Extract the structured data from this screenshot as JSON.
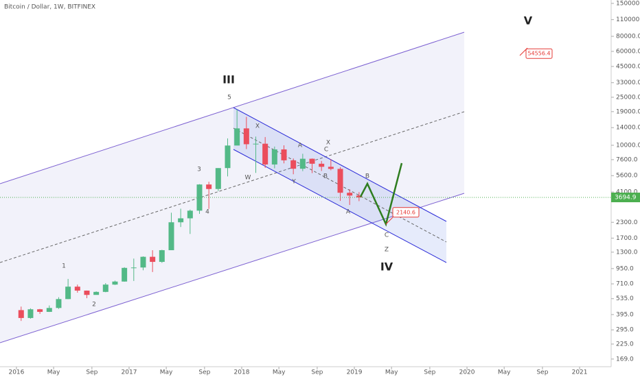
{
  "chart_data": {
    "type": "candlestick",
    "title": "Bitcoin / Dollar, 1W, BITFINEX",
    "log_scale": true,
    "up_color": "#53b987",
    "down_color": "#eb4d5c",
    "x": [
      "2016-01",
      "2016-02",
      "2016-03",
      "2016-04",
      "2016-05",
      "2016-06",
      "2016-07",
      "2016-08",
      "2016-09",
      "2016-10",
      "2016-11",
      "2016-12",
      "2017-01",
      "2017-02",
      "2017-03",
      "2017-04",
      "2017-05",
      "2017-06",
      "2017-07",
      "2017-08",
      "2017-09",
      "2017-10",
      "2017-11",
      "2017-12",
      "2018-01",
      "2018-02",
      "2018-03",
      "2018-04",
      "2018-05",
      "2018-06",
      "2018-07",
      "2018-08",
      "2018-09",
      "2018-10",
      "2018-11",
      "2018-12",
      "2019-01"
    ],
    "open": [
      430,
      370,
      437,
      416,
      448,
      531,
      673,
      624,
      575,
      609,
      700,
      742,
      963,
      970,
      1190,
      1080,
      1350,
      2300,
      2480,
      2870,
      4730,
      4340,
      6470,
      9950,
      13800,
      10200,
      10300,
      6930,
      9240,
      7500,
      6390,
      7730,
      7030,
      6630,
      6370,
      4040,
      3830
    ],
    "high": [
      460,
      445,
      440,
      470,
      550,
      780,
      700,
      625,
      615,
      720,
      755,
      975,
      1150,
      1200,
      1350,
      1360,
      2760,
      2980,
      2930,
      4760,
      4980,
      6470,
      11400,
      19800,
      17200,
      11800,
      11700,
      9760,
      9990,
      7780,
      8500,
      7770,
      7410,
      7680,
      6580,
      4310,
      4090
    ],
    "low": [
      350,
      365,
      400,
      415,
      440,
      530,
      600,
      540,
      595,
      605,
      695,
      740,
      750,
      920,
      890,
      1060,
      1350,
      2100,
      1840,
      2700,
      2970,
      4170,
      5520,
      10900,
      9300,
      5900,
      6500,
      6440,
      7080,
      5750,
      6100,
      5880,
      6120,
      6200,
      3460,
      3200,
      3440
    ],
    "close": [
      370,
      437,
      416,
      448,
      531,
      673,
      624,
      575,
      609,
      700,
      742,
      963,
      970,
      1190,
      1080,
      1350,
      2300,
      2480,
      2870,
      4730,
      4340,
      6470,
      9950,
      13800,
      10200,
      10300,
      6930,
      9240,
      7500,
      6390,
      7730,
      7030,
      6630,
      6370,
      4040,
      3830,
      3695
    ],
    "ylim": [
      146,
      160000
    ],
    "yticks": [
      {
        "value": 150000,
        "label": "150000.0"
      },
      {
        "value": 110000,
        "label": "110000.0"
      },
      {
        "value": 80000,
        "label": "80000.0"
      },
      {
        "value": 60000,
        "label": "60000.0"
      },
      {
        "value": 45000,
        "label": "45000.0"
      },
      {
        "value": 33000,
        "label": "33000.0"
      },
      {
        "value": 25000,
        "label": "25000.0"
      },
      {
        "value": 19000,
        "label": "19000.0"
      },
      {
        "value": 14000,
        "label": "14000.0"
      },
      {
        "value": 10000,
        "label": "10000.0"
      },
      {
        "value": 7600,
        "label": "7600.0"
      },
      {
        "value": 5600,
        "label": "5600.0"
      },
      {
        "value": 4100,
        "label": "4100.0"
      },
      {
        "value": 2300,
        "label": "2300.0"
      },
      {
        "value": 1700,
        "label": "1700.0"
      },
      {
        "value": 1300,
        "label": "1300.0"
      },
      {
        "value": 950,
        "label": "950.0"
      },
      {
        "value": 710,
        "label": "710.0"
      },
      {
        "value": 535,
        "label": "535.0"
      },
      {
        "value": 395,
        "label": "395.0"
      },
      {
        "value": 295,
        "label": "295.0"
      },
      {
        "value": 225,
        "label": "225.0"
      },
      {
        "value": 169,
        "label": "169.0"
      }
    ],
    "xlim": [
      2015.854,
      2021.28
    ],
    "xticks": [
      {
        "value": 2016,
        "label": "2016"
      },
      {
        "value": 2016.33,
        "label": "May"
      },
      {
        "value": 2016.67,
        "label": "Sep"
      },
      {
        "value": 2017,
        "label": "2017"
      },
      {
        "value": 2017.33,
        "label": "May"
      },
      {
        "value": 2017.67,
        "label": "Sep"
      },
      {
        "value": 2018,
        "label": "2018"
      },
      {
        "value": 2018.33,
        "label": "May"
      },
      {
        "value": 2018.67,
        "label": "Sep"
      },
      {
        "value": 2019,
        "label": "2019"
      },
      {
        "value": 2019.33,
        "label": "May"
      },
      {
        "value": 2019.67,
        "label": "Sep"
      },
      {
        "value": 2020,
        "label": "2020"
      },
      {
        "value": 2020.33,
        "label": "May"
      },
      {
        "value": 2020.67,
        "label": "Sep"
      },
      {
        "value": 2021,
        "label": "2021"
      }
    ],
    "last_price": 3694.9,
    "target_high": 54556.4,
    "target_low": 2140.6,
    "annotations": [
      "III",
      "IV",
      "V",
      "5",
      "3",
      "4",
      "1",
      "2",
      "X",
      "W",
      "Y",
      "A",
      "X",
      "C",
      "B",
      "B",
      "A",
      "C",
      "Z"
    ]
  }
}
